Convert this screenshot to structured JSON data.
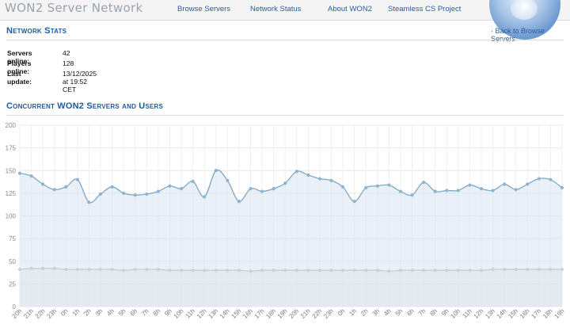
{
  "header": {
    "brand": "WON2 Server Network",
    "nav": [
      {
        "label": "Browse Servers"
      },
      {
        "label": "Network Status"
      },
      {
        "label": "About WON2"
      },
      {
        "label": "Steamless CS Project"
      }
    ]
  },
  "network_stats": {
    "title": "Network Stats",
    "back_link": "· Back to Browse Servers",
    "rows": [
      {
        "label": "Servers online:",
        "value": "42"
      },
      {
        "label": "Players online:",
        "value": "128"
      },
      {
        "label": "Last update:",
        "value": "13/12/2025 at 19:52 CET"
      }
    ]
  },
  "chart_section": {
    "title": "Concurrent WON2 Servers and Users"
  },
  "colors": {
    "link": "#2a5d9a",
    "heading": "#1f5a9c",
    "users_line": "#7fa9c4",
    "servers_line": "#c9cdd2"
  },
  "chart_data": {
    "type": "area",
    "ylim": [
      0,
      200
    ],
    "yticks": [
      "0",
      "25",
      "50",
      "75",
      "100",
      "125",
      "150",
      "175",
      "200"
    ],
    "grid": true,
    "x": [
      "20h",
      "21h",
      "22h",
      "23h",
      "0h",
      "1h",
      "2h",
      "3h",
      "4h",
      "5h",
      "6h",
      "7h",
      "8h",
      "9h",
      "10h",
      "11h",
      "12h",
      "13h",
      "14h",
      "15h",
      "16h",
      "17h",
      "18h",
      "19h",
      "20h",
      "21h",
      "22h",
      "23h",
      "0h",
      "1h",
      "2h",
      "3h",
      "4h",
      "5h",
      "6h",
      "7h",
      "8h",
      "9h",
      "10h",
      "11h",
      "12h",
      "13h",
      "14h",
      "15h",
      "16h",
      "17h",
      "18h",
      "19h"
    ],
    "series": [
      {
        "values": [
          147,
          144,
          135,
          129,
          132,
          140,
          115,
          124,
          132,
          125,
          123,
          124,
          127,
          133,
          130,
          138,
          121,
          150,
          139,
          116,
          130,
          127,
          130,
          136,
          149,
          145,
          141,
          139,
          132,
          116,
          131,
          133,
          134,
          127,
          123,
          137,
          127,
          128,
          128,
          134,
          130,
          128,
          135,
          129,
          135,
          141,
          140,
          131
        ]
      },
      {
        "values": [
          41,
          42,
          42,
          42,
          41,
          41,
          41,
          41,
          41,
          40,
          41,
          41,
          41,
          40,
          40,
          40,
          40,
          40,
          40,
          40,
          39,
          40,
          40,
          40,
          40,
          40,
          40,
          40,
          40,
          40,
          40,
          40,
          39,
          40,
          40,
          40,
          40,
          40,
          40,
          40,
          40,
          41,
          41,
          41,
          41,
          41,
          41,
          41
        ]
      }
    ]
  }
}
